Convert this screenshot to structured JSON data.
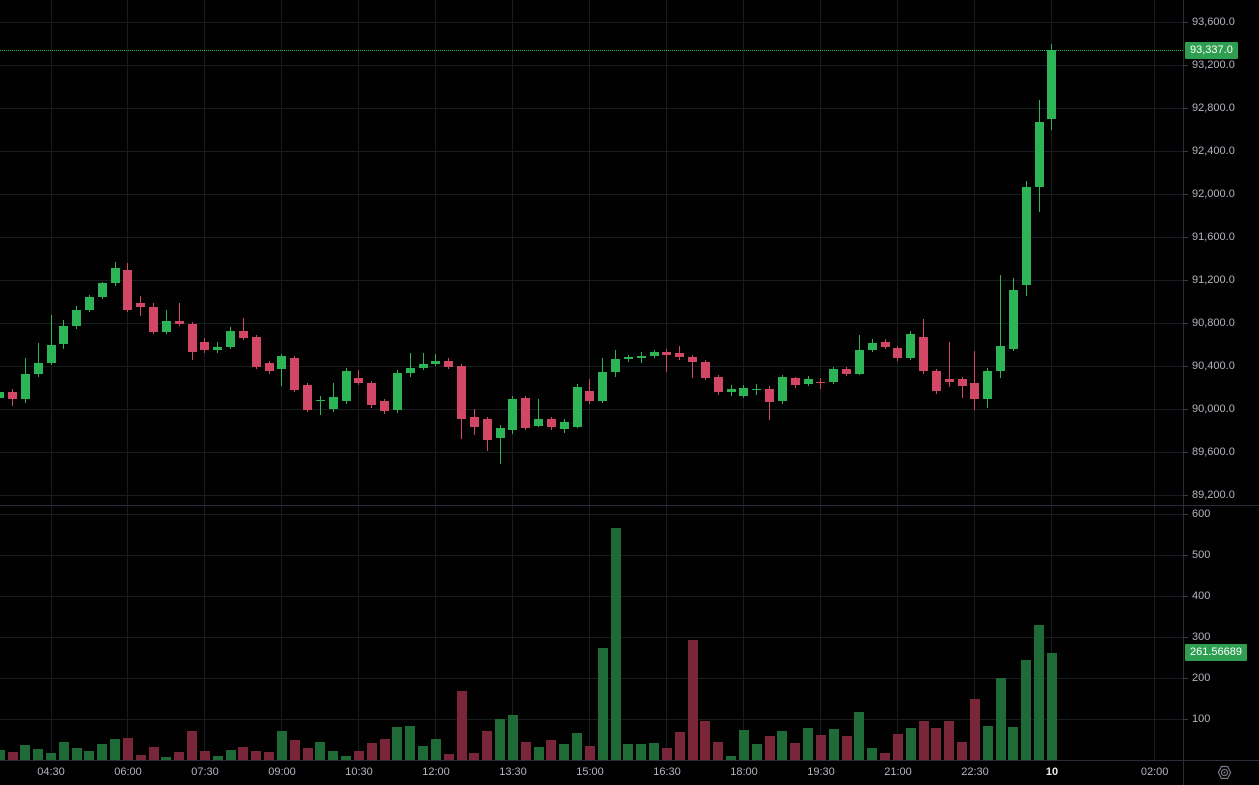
{
  "chart_data": {
    "type": "candlestick_with_volume",
    "interval_minutes": 15,
    "grid": true,
    "legend_position": "none",
    "price_axis": {
      "side": "right",
      "ylim": [
        89090,
        93790
      ],
      "ticks": [
        {
          "v": 93600,
          "label": "93,600.0"
        },
        {
          "v": 93200,
          "label": "93,200.0"
        },
        {
          "v": 92800,
          "label": "92,800.0"
        },
        {
          "v": 92400,
          "label": "92,400.0"
        },
        {
          "v": 92000,
          "label": "92,000.0"
        },
        {
          "v": 91600,
          "label": "91,600.0"
        },
        {
          "v": 91200,
          "label": "91,200.0"
        },
        {
          "v": 90800,
          "label": "90,800.0"
        },
        {
          "v": 90400,
          "label": "90,400.0"
        },
        {
          "v": 90000,
          "label": "90,000.0"
        },
        {
          "v": 89600,
          "label": "89,600.0"
        },
        {
          "v": 89200,
          "label": "89,200.0"
        }
      ],
      "last_price": 93337,
      "last_price_label": "93,337.0"
    },
    "volume_axis": {
      "side": "right",
      "ylim": [
        0,
        620
      ],
      "ticks": [
        {
          "v": 600,
          "label": "600"
        },
        {
          "v": 500,
          "label": "500"
        },
        {
          "v": 400,
          "label": "400"
        },
        {
          "v": 300,
          "label": "300"
        },
        {
          "v": 200,
          "label": "200"
        },
        {
          "v": 100,
          "label": "100"
        }
      ],
      "last_volume": 261.56689,
      "last_volume_label": "261.56689"
    },
    "time_axis": {
      "ticks": [
        {
          "i": 4,
          "label": "04:30",
          "bold": false
        },
        {
          "i": 10,
          "label": "06:00",
          "bold": false
        },
        {
          "i": 16,
          "label": "07:30",
          "bold": false
        },
        {
          "i": 22,
          "label": "09:00",
          "bold": false
        },
        {
          "i": 28,
          "label": "10:30",
          "bold": false
        },
        {
          "i": 34,
          "label": "12:00",
          "bold": false
        },
        {
          "i": 40,
          "label": "13:30",
          "bold": false
        },
        {
          "i": 46,
          "label": "15:00",
          "bold": false
        },
        {
          "i": 52,
          "label": "16:30",
          "bold": false
        },
        {
          "i": 58,
          "label": "18:00",
          "bold": false
        },
        {
          "i": 64,
          "label": "19:30",
          "bold": false
        },
        {
          "i": 70,
          "label": "21:00",
          "bold": false
        },
        {
          "i": 76,
          "label": "22:30",
          "bold": false
        },
        {
          "i": 82,
          "label": "10",
          "bold": true
        },
        {
          "i": 90,
          "label": "02:00",
          "bold": false
        }
      ]
    },
    "candles": [
      [
        "03:30",
        90100,
        90190,
        90040,
        90160,
        25
      ],
      [
        "03:45",
        90160,
        90190,
        90030,
        90090,
        19
      ],
      [
        "04:00",
        90090,
        90470,
        90060,
        90330,
        36
      ],
      [
        "04:15",
        90330,
        90610,
        90300,
        90430,
        27
      ],
      [
        "04:30",
        90430,
        90870,
        90410,
        90600,
        18
      ],
      [
        "04:45",
        90600,
        90830,
        90560,
        90770,
        45
      ],
      [
        "05:00",
        90770,
        90960,
        90740,
        90925,
        30
      ],
      [
        "05:15",
        90925,
        91060,
        90900,
        91045,
        21
      ],
      [
        "05:30",
        91045,
        91180,
        91020,
        91170,
        39
      ],
      [
        "05:45",
        91170,
        91370,
        91140,
        91310,
        52
      ],
      [
        "06:00",
        91295,
        91355,
        90900,
        90920,
        54
      ],
      [
        "06:15",
        90990,
        91050,
        90865,
        90950,
        13
      ],
      [
        "06:30",
        90950,
        90990,
        90700,
        90720,
        32
      ],
      [
        "06:45",
        90720,
        90920,
        90700,
        90820,
        8
      ],
      [
        "07:00",
        90820,
        90990,
        90770,
        90790,
        19
      ],
      [
        "07:15",
        90790,
        90810,
        90455,
        90530,
        71
      ],
      [
        "07:30",
        90620,
        90660,
        90520,
        90545,
        23
      ],
      [
        "07:45",
        90545,
        90620,
        90525,
        90580,
        9
      ],
      [
        "08:00",
        90580,
        90760,
        90560,
        90730,
        25
      ],
      [
        "08:15",
        90730,
        90850,
        90640,
        90660,
        32
      ],
      [
        "08:30",
        90670,
        90690,
        90370,
        90390,
        23
      ],
      [
        "08:45",
        90430,
        90450,
        90330,
        90350,
        19
      ],
      [
        "09:00",
        90370,
        90510,
        90210,
        90490,
        71
      ],
      [
        "09:15",
        90475,
        90490,
        90160,
        90180,
        48
      ],
      [
        "09:30",
        90225,
        90240,
        89970,
        89990,
        30
      ],
      [
        "09:45",
        90070,
        90120,
        89940,
        90080,
        45
      ],
      [
        "10:00",
        90000,
        90240,
        89975,
        90110,
        23
      ],
      [
        "10:15",
        90070,
        90380,
        90050,
        90350,
        9
      ],
      [
        "10:30",
        90290,
        90360,
        90220,
        90240,
        21
      ],
      [
        "10:45",
        90240,
        90260,
        90010,
        90035,
        42
      ],
      [
        "11:00",
        90070,
        90090,
        89950,
        89980,
        52
      ],
      [
        "11:15",
        89990,
        90360,
        89960,
        90335,
        81
      ],
      [
        "11:30",
        90335,
        90520,
        90300,
        90380,
        84
      ],
      [
        "11:45",
        90380,
        90520,
        90360,
        90420,
        34
      ],
      [
        "12:00",
        90420,
        90515,
        90400,
        90450,
        51
      ],
      [
        "12:15",
        90450,
        90470,
        90370,
        90390,
        15
      ],
      [
        "12:30",
        90400,
        90420,
        89720,
        89905,
        168
      ],
      [
        "12:45",
        89930,
        90000,
        89760,
        89830,
        16
      ],
      [
        "13:00",
        89910,
        89930,
        89610,
        89710,
        71
      ],
      [
        "13:15",
        89730,
        89850,
        89490,
        89820,
        99
      ],
      [
        "13:30",
        89800,
        90120,
        89770,
        90095,
        110
      ],
      [
        "13:45",
        90100,
        90120,
        89800,
        89825,
        45
      ],
      [
        "14:00",
        89845,
        90090,
        89830,
        89905,
        32
      ],
      [
        "14:15",
        89905,
        89930,
        89800,
        89830,
        49
      ],
      [
        "14:30",
        89810,
        89910,
        89780,
        89880,
        38
      ],
      [
        "14:45",
        89835,
        90230,
        89820,
        90205,
        65
      ],
      [
        "15:00",
        90165,
        90280,
        90050,
        90075,
        34
      ],
      [
        "15:15",
        90070,
        90470,
        90060,
        90340,
        272
      ],
      [
        "15:30",
        90340,
        90550,
        90300,
        90465,
        565
      ],
      [
        "15:45",
        90465,
        90500,
        90440,
        90480,
        39
      ],
      [
        "16:00",
        90470,
        90530,
        90430,
        90490,
        39
      ],
      [
        "16:15",
        90490,
        90545,
        90470,
        90530,
        42
      ],
      [
        "16:30",
        90530,
        90560,
        90345,
        90500,
        29
      ],
      [
        "16:45",
        90520,
        90590,
        90460,
        90480,
        69
      ],
      [
        "17:00",
        90480,
        90500,
        90290,
        90440,
        292
      ],
      [
        "17:15",
        90440,
        90460,
        90270,
        90290,
        94
      ],
      [
        "17:30",
        90300,
        90320,
        90130,
        90155,
        45
      ],
      [
        "17:45",
        90155,
        90220,
        90120,
        90185,
        9
      ],
      [
        "18:00",
        90120,
        90220,
        90100,
        90195,
        74
      ],
      [
        "18:15",
        90180,
        90230,
        90130,
        90185,
        39
      ],
      [
        "18:30",
        90190,
        90210,
        89900,
        90065,
        58
      ],
      [
        "18:45",
        90070,
        90320,
        90050,
        90300,
        71
      ],
      [
        "19:00",
        90285,
        90300,
        90200,
        90220,
        42
      ],
      [
        "19:15",
        90230,
        90310,
        90210,
        90280,
        77
      ],
      [
        "19:30",
        90255,
        90290,
        90190,
        90245,
        60
      ],
      [
        "19:45",
        90250,
        90395,
        90230,
        90375,
        76
      ],
      [
        "20:00",
        90370,
        90390,
        90310,
        90330,
        58
      ],
      [
        "20:15",
        90330,
        90690,
        90320,
        90550,
        117
      ],
      [
        "20:30",
        90550,
        90650,
        90530,
        90610,
        30
      ],
      [
        "20:45",
        90625,
        90650,
        90560,
        90580,
        16
      ],
      [
        "21:00",
        90565,
        90590,
        90450,
        90470,
        64
      ],
      [
        "21:15",
        90470,
        90730,
        90460,
        90700,
        79
      ],
      [
        "21:30",
        90670,
        90835,
        90330,
        90350,
        94
      ],
      [
        "21:45",
        90350,
        90370,
        90140,
        90170,
        79
      ],
      [
        "22:00",
        90280,
        90620,
        90200,
        90250,
        96
      ],
      [
        "22:15",
        90280,
        90300,
        90100,
        90215,
        44
      ],
      [
        "22:30",
        90240,
        90540,
        89995,
        90090,
        149
      ],
      [
        "22:45",
        90090,
        90380,
        90010,
        90355,
        82
      ],
      [
        "23:00",
        90355,
        91250,
        90290,
        90590,
        201
      ],
      [
        "23:15",
        90560,
        91215,
        90540,
        91110,
        80
      ],
      [
        "23:30",
        91150,
        92120,
        91050,
        92065,
        245
      ],
      [
        "23:45",
        92065,
        92875,
        91835,
        92670,
        329
      ],
      [
        "00:00",
        92700,
        93400,
        92600,
        93337,
        261.56689
      ]
    ],
    "colors": {
      "up": "#2cb457",
      "down": "#d24765",
      "volume_up": "#1e6b37",
      "volume_down": "#7a2639",
      "badge": "#2e9e50",
      "price_line": "#2dbd64",
      "grid": "#171c22",
      "axis_text": "#b2b5be",
      "date_text": "#e8eaed",
      "separator": "#2a2e39",
      "background": "#010101"
    }
  }
}
